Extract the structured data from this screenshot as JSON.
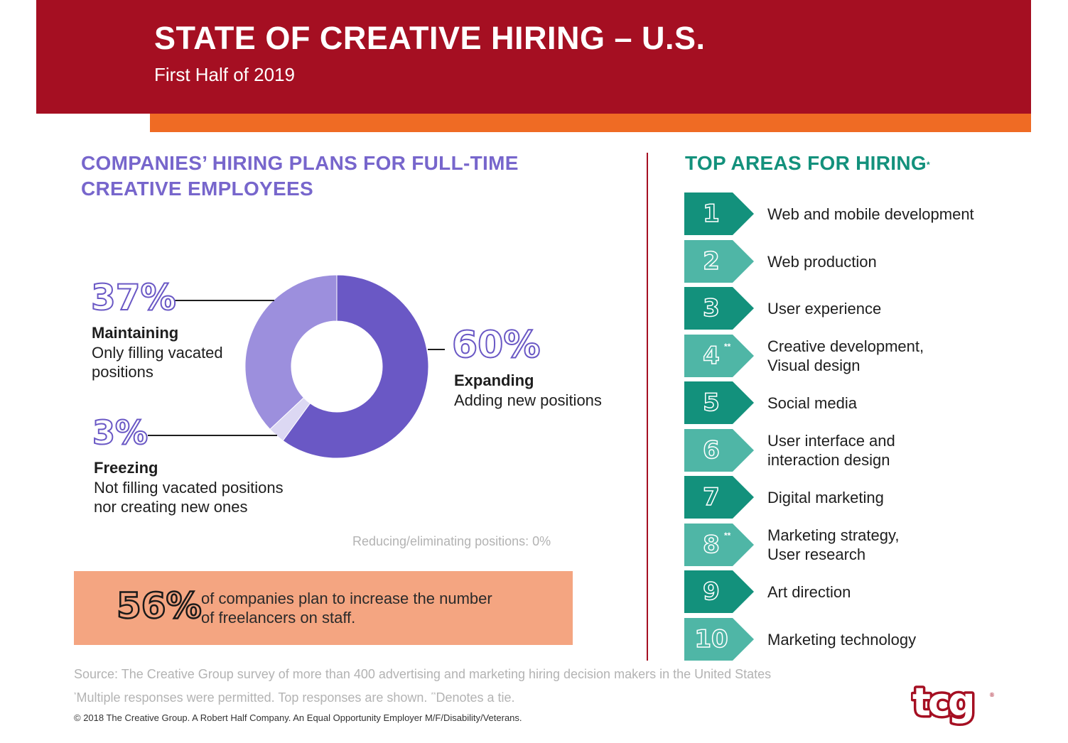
{
  "header": {
    "title": "STATE OF CREATIVE HIRING – U.S.",
    "subtitle": "First Half of 2019"
  },
  "left_section": {
    "title_line1": "COMPANIES’ HIRING PLANS FOR FULL-TIME",
    "title_line2": "CREATIVE EMPLOYEES"
  },
  "right_section": {
    "title": "TOP AREAS FOR HIRING",
    "title_mark": "*"
  },
  "colors": {
    "header_red": "#a50f22",
    "accent_orange": "#ef6b24",
    "purple": "#7766cc",
    "teal": "#13917c",
    "freelance_box": "#f4a581"
  },
  "chart_data": {
    "type": "pie",
    "variant": "donut",
    "slices": [
      {
        "label": "Expanding",
        "description": "Adding new positions",
        "pct_text": "60%",
        "value": 60,
        "color": "#6a58c5"
      },
      {
        "label": "Freezing",
        "description": "Not filling vacated positions nor creating new ones",
        "pct_text": "3%",
        "value": 3,
        "color": "#dcd8f3"
      },
      {
        "label": "Maintaining",
        "description": "Only filling vacated positions",
        "pct_text": "37%",
        "value": 37,
        "color": "#9c8fdd"
      }
    ],
    "note": "Reducing/eliminating positions: 0%"
  },
  "labels": {
    "maintaining": {
      "pct": "37%",
      "title": "Maintaining",
      "desc_line1": "Only filling vacated",
      "desc_line2": "positions"
    },
    "expanding": {
      "pct": "60%",
      "title": "Expanding",
      "desc_line1": "Adding new positions"
    },
    "freezing": {
      "pct": "3%",
      "title": "Freezing",
      "desc_line1": "Not filling vacated positions",
      "desc_line2": "nor creating new ones"
    }
  },
  "freelance": {
    "pct": "56%",
    "text_line1": "of companies plan to increase the number",
    "text_line2": "of freelancers on staff."
  },
  "top_areas": [
    {
      "rank": "1",
      "tie": "",
      "line1": "Web and mobile development",
      "line2": ""
    },
    {
      "rank": "2",
      "tie": "",
      "line1": "Web production",
      "line2": ""
    },
    {
      "rank": "3",
      "tie": "",
      "line1": "User experience",
      "line2": ""
    },
    {
      "rank": "4",
      "tie": "**",
      "line1": "Creative development,",
      "line2": "Visual design"
    },
    {
      "rank": "5",
      "tie": "",
      "line1": "Social media",
      "line2": ""
    },
    {
      "rank": "6",
      "tie": "",
      "line1": "User interface and",
      "line2": "interaction design"
    },
    {
      "rank": "7",
      "tie": "",
      "line1": "Digital marketing",
      "line2": ""
    },
    {
      "rank": "8",
      "tie": "**",
      "line1": "Marketing strategy,",
      "line2": "User research"
    },
    {
      "rank": "9",
      "tie": "",
      "line1": "Art direction",
      "line2": ""
    },
    {
      "rank": "10",
      "tie": "",
      "line1": "Marketing technology",
      "line2": ""
    }
  ],
  "footer": {
    "source": "Source: The Creative Group survey of more than 400 advertising and marketing hiring decision makers in the United States",
    "footnote_mark1": "*",
    "footnote_part1": "Multiple responses were permitted. Top responses are shown. ",
    "footnote_mark2": "**",
    "footnote_part2": "Denotes a tie.",
    "copyright": "© 2018 The Creative Group. A Robert Half Company. An Equal Opportunity Employer M/F/Disability/Veterans."
  },
  "logo": {
    "text": "tcg",
    "mark": "®"
  }
}
